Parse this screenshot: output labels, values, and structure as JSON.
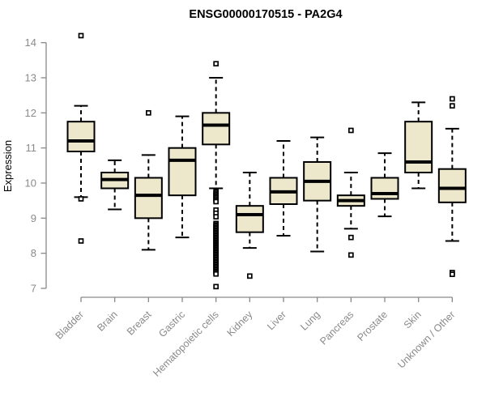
{
  "chart_data": {
    "type": "boxplot",
    "title": "ENSG00000170515 - PA2G4",
    "ylabel": "Expression",
    "xlabel": "",
    "ylim": [
      6.8,
      14.4
    ],
    "yticks": [
      7,
      8,
      9,
      10,
      11,
      12,
      13,
      14
    ],
    "grid": false,
    "legend": "none",
    "categories": [
      "Bladder",
      "Brain",
      "Breast",
      "Gastric",
      "Hematopoietic cells",
      "Kidney",
      "Liver",
      "Lung",
      "Pancreas",
      "Prostate",
      "Skin",
      "Unknown / Other"
    ],
    "boxes": [
      {
        "category": "Bladder",
        "whisker_low": 9.6,
        "q1": 10.9,
        "median": 11.2,
        "q3": 11.75,
        "whisker_high": 12.2,
        "outliers": [
          14.2,
          9.55,
          8.35
        ]
      },
      {
        "category": "Brain",
        "whisker_low": 9.25,
        "q1": 9.85,
        "median": 10.1,
        "q3": 10.3,
        "whisker_high": 10.65,
        "outliers": []
      },
      {
        "category": "Breast",
        "whisker_low": 8.1,
        "q1": 9.0,
        "median": 9.65,
        "q3": 10.15,
        "whisker_high": 10.8,
        "outliers": [
          12.0
        ]
      },
      {
        "category": "Gastric",
        "whisker_low": 8.45,
        "q1": 9.65,
        "median": 10.65,
        "q3": 11.0,
        "whisker_high": 11.9,
        "outliers": []
      },
      {
        "category": "Hematopoietic cells",
        "whisker_low": 9.85,
        "q1": 11.1,
        "median": 11.65,
        "q3": 12.0,
        "whisker_high": 13.0,
        "outliers": [
          13.4,
          9.75,
          9.71,
          9.67,
          9.63,
          9.59,
          9.55,
          9.51,
          9.47,
          9.23,
          9.14,
          9.04,
          8.85,
          8.81,
          8.78,
          8.74,
          8.71,
          8.67,
          8.64,
          8.6,
          8.57,
          8.53,
          8.5,
          8.46,
          8.43,
          8.39,
          8.36,
          8.32,
          8.29,
          8.25,
          8.22,
          8.18,
          8.15,
          8.11,
          8.08,
          8.04,
          8.01,
          7.97,
          7.94,
          7.9,
          7.87,
          7.83,
          7.8,
          7.76,
          7.73,
          7.69,
          7.66,
          7.62,
          7.59,
          7.55,
          7.52,
          7.48,
          7.45,
          7.41,
          7.05
        ]
      },
      {
        "category": "Kidney",
        "whisker_low": 8.15,
        "q1": 8.6,
        "median": 9.1,
        "q3": 9.35,
        "whisker_high": 10.3,
        "outliers": [
          7.35
        ]
      },
      {
        "category": "Liver",
        "whisker_low": 8.5,
        "q1": 9.4,
        "median": 9.75,
        "q3": 10.15,
        "whisker_high": 11.2,
        "outliers": []
      },
      {
        "category": "Lung",
        "whisker_low": 8.05,
        "q1": 9.5,
        "median": 10.05,
        "q3": 10.6,
        "whisker_high": 11.3,
        "outliers": []
      },
      {
        "category": "Pancreas",
        "whisker_low": 8.7,
        "q1": 9.35,
        "median": 9.5,
        "q3": 9.65,
        "whisker_high": 10.3,
        "outliers": [
          11.5,
          8.45,
          7.95
        ]
      },
      {
        "category": "Prostate",
        "whisker_low": 9.05,
        "q1": 9.55,
        "median": 9.7,
        "q3": 10.15,
        "whisker_high": 10.85,
        "outliers": []
      },
      {
        "category": "Skin",
        "whisker_low": 9.85,
        "q1": 10.3,
        "median": 10.6,
        "q3": 11.75,
        "whisker_high": 12.3,
        "outliers": []
      },
      {
        "category": "Unknown / Other",
        "whisker_low": 8.35,
        "q1": 9.45,
        "median": 9.85,
        "q3": 10.4,
        "whisker_high": 11.55,
        "outliers": [
          12.4,
          12.2,
          7.45,
          7.4
        ]
      }
    ],
    "colors": {
      "background": "#ffffff",
      "box_fill": "#ede8cb",
      "box_border": "#000000",
      "median": "#000000",
      "whisker": "#000000",
      "outlier_stroke": "#000000",
      "outlier_fill": "#ffffff",
      "axis_line": "#898989",
      "tick_text": "#8a8a8a",
      "title_text": "#000000"
    }
  }
}
